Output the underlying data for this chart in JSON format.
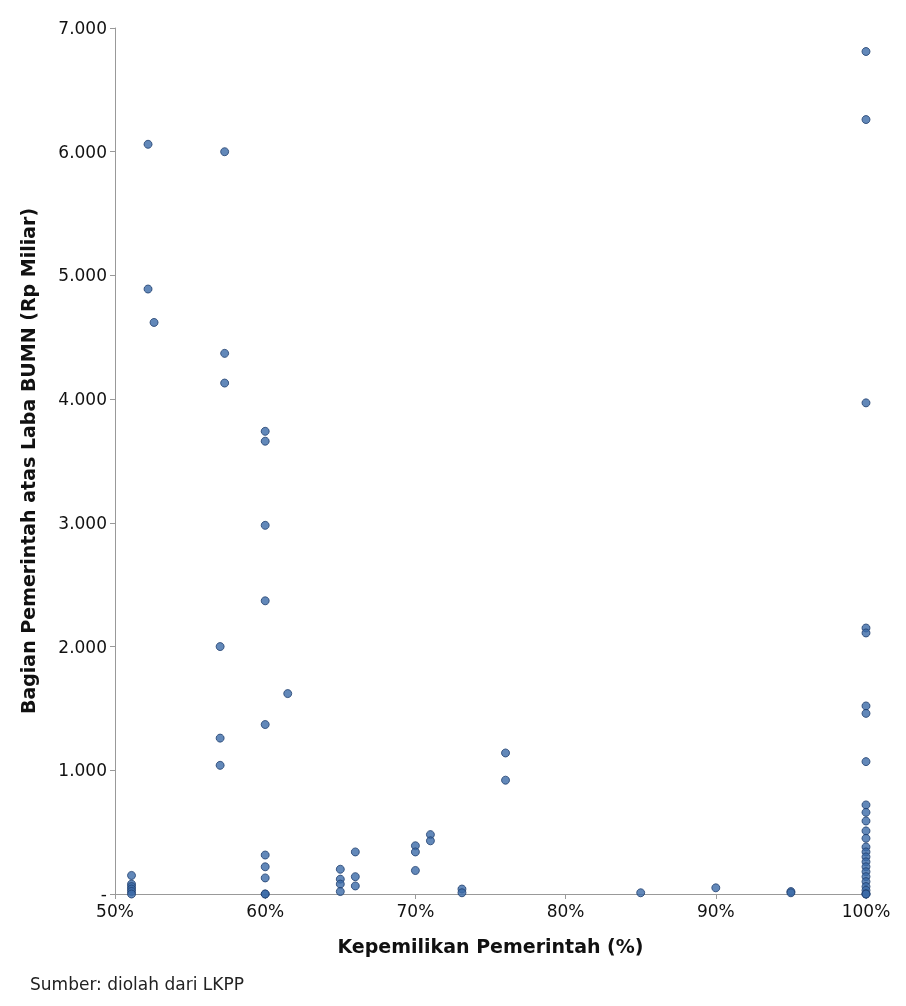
{
  "chart_data": {
    "type": "scatter",
    "xlabel": "Kepemilikan Pemerintah (%)",
    "ylabel": "Bagian Pemerintah atas Laba BUMN (Rp Miliar)",
    "annotations": [
      "Sumber: diolah dari LKPP"
    ],
    "xlim": [
      50,
      100
    ],
    "xticks": [
      {
        "value": 50,
        "label": "50%"
      },
      {
        "value": 60,
        "label": "60%"
      },
      {
        "value": 70,
        "label": "70%"
      },
      {
        "value": 80,
        "label": "80%"
      },
      {
        "value": 90,
        "label": "90%"
      },
      {
        "value": 100,
        "label": "100%"
      }
    ],
    "ylim": [
      0,
      7000
    ],
    "yticks": [
      {
        "value": 0,
        "label": "-"
      },
      {
        "value": 1000,
        "label": "1.000"
      },
      {
        "value": 2000,
        "label": "2.000"
      },
      {
        "value": 3000,
        "label": "3.000"
      },
      {
        "value": 4000,
        "label": "4.000"
      },
      {
        "value": 5000,
        "label": "5.000"
      },
      {
        "value": 6000,
        "label": "6.000"
      },
      {
        "value": 7000,
        "label": "7.000"
      }
    ],
    "grid": false,
    "marker": "circle",
    "series": [
      {
        "color": "#3b6aa8",
        "x": [
          52.2,
          52.2,
          52.6,
          51.1,
          51.1,
          51.1,
          51.1,
          51.1,
          51.1,
          57.3,
          57.3,
          57.3,
          57.0,
          57.0,
          57.0,
          60,
          60,
          60,
          60,
          60,
          60,
          60,
          60,
          60,
          60,
          61.5,
          65,
          65,
          65,
          65,
          66,
          66,
          66,
          70,
          70,
          70,
          71,
          71,
          73.1,
          73.1,
          76,
          76,
          85,
          90,
          95,
          95,
          100,
          100,
          100,
          100,
          100,
          100,
          100,
          100,
          100,
          100,
          100,
          100,
          100,
          100,
          100,
          100,
          100,
          100,
          100,
          100,
          100,
          100,
          100,
          100,
          100,
          100
        ],
        "values": [
          6060,
          4890,
          4620,
          150,
          80,
          60,
          40,
          20,
          0,
          6000,
          4370,
          4130,
          2000,
          1260,
          1040,
          3740,
          3660,
          2980,
          2370,
          1370,
          315,
          220,
          130,
          0,
          0,
          1620,
          200,
          120,
          80,
          20,
          340,
          140,
          65,
          390,
          340,
          190,
          480,
          430,
          40,
          10,
          1140,
          920,
          10,
          50,
          20,
          10,
          6810,
          6260,
          3970,
          2150,
          2110,
          1520,
          1460,
          1070,
          720,
          660,
          590,
          510,
          450,
          380,
          340,
          300,
          260,
          220,
          180,
          140,
          100,
          60,
          30,
          0,
          0,
          0
        ]
      }
    ]
  }
}
